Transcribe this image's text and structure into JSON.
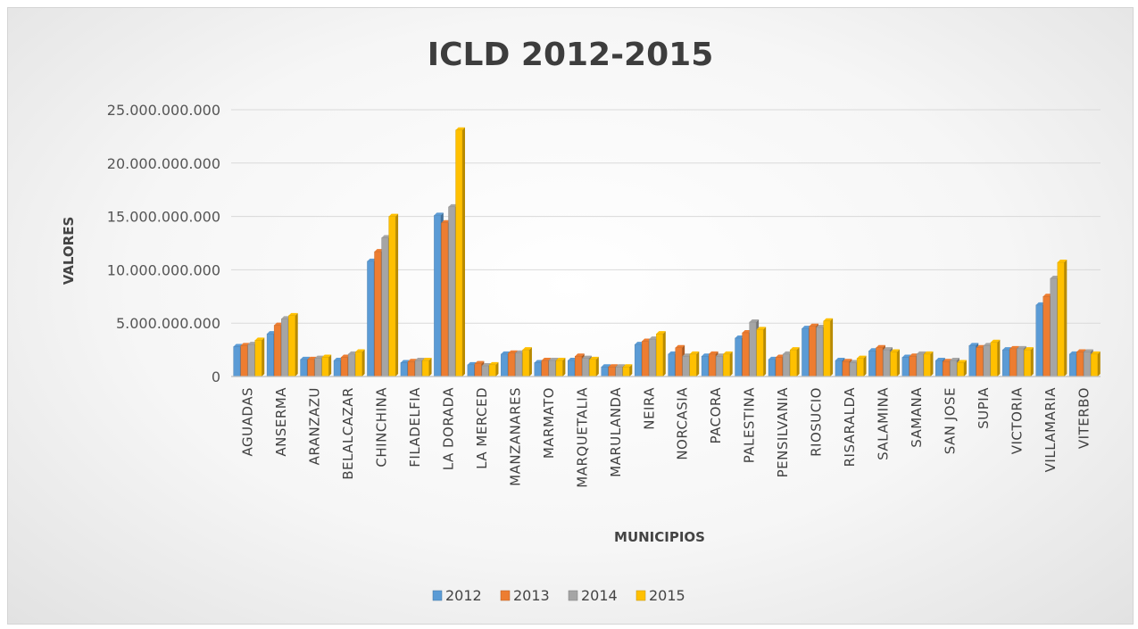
{
  "chart_data": {
    "type": "bar",
    "title": "ICLD 2012-2015",
    "xlabel": "MUNICIPIOS",
    "ylabel": "VALORES",
    "ylim": [
      0,
      25000000000
    ],
    "yticks": [
      0,
      5000000000,
      10000000000,
      15000000000,
      20000000000,
      25000000000
    ],
    "ytick_labels": [
      "0",
      "5.000.000.000",
      "10.000.000.000",
      "15.000.000.000",
      "20.000.000.000",
      "25.000.000.000"
    ],
    "grid": true,
    "legend_position": "bottom",
    "categories": [
      "AGUADAS",
      "ANSERMA",
      "ARANZAZU",
      "BELALCAZAR",
      "CHINCHINA",
      "FILADELFIA",
      "LA DORADA",
      "LA MERCED",
      "MANZANARES",
      "MARMATO",
      "MARQUETALIA",
      "MARULANDA",
      "NEIRA",
      "NORCASIA",
      "PACORA",
      "PALESTINA",
      "PENSILVANIA",
      "RIOSUCIO",
      "RISARALDA",
      "SALAMINA",
      "SAMANA",
      "SAN JOSE",
      "SUPIA",
      "VICTORIA",
      "VILLAMARIA",
      "VITERBO"
    ],
    "series": [
      {
        "name": "2012",
        "color": "#5b9bd5",
        "values": [
          2800000000,
          4000000000,
          1600000000,
          1500000000,
          10800000000,
          1300000000,
          15100000000,
          1100000000,
          2100000000,
          1300000000,
          1500000000,
          900000000,
          3000000000,
          2100000000,
          1900000000,
          3600000000,
          1600000000,
          4500000000,
          1500000000,
          2400000000,
          1800000000,
          1500000000,
          2900000000,
          2500000000,
          6700000000,
          2100000000
        ]
      },
      {
        "name": "2013",
        "color": "#ed7d31",
        "values": [
          2900000000,
          4800000000,
          1600000000,
          1800000000,
          11700000000,
          1400000000,
          14400000000,
          1200000000,
          2200000000,
          1500000000,
          1900000000,
          900000000,
          3300000000,
          2700000000,
          2100000000,
          4100000000,
          1800000000,
          4700000000,
          1400000000,
          2700000000,
          1900000000,
          1400000000,
          2700000000,
          2600000000,
          7500000000,
          2300000000
        ]
      },
      {
        "name": "2014",
        "color": "#a5a5a5",
        "values": [
          3000000000,
          5400000000,
          1700000000,
          2100000000,
          13000000000,
          1500000000,
          15900000000,
          1000000000,
          2200000000,
          1500000000,
          1700000000,
          900000000,
          3500000000,
          1900000000,
          1900000000,
          5100000000,
          2100000000,
          4600000000,
          1300000000,
          2500000000,
          2100000000,
          1500000000,
          2900000000,
          2600000000,
          9200000000,
          2300000000
        ]
      },
      {
        "name": "2015",
        "color": "#ffc000",
        "values": [
          3400000000,
          5700000000,
          1800000000,
          2300000000,
          15000000000,
          1500000000,
          23100000000,
          1100000000,
          2500000000,
          1500000000,
          1600000000,
          900000000,
          4000000000,
          2100000000,
          2100000000,
          4400000000,
          2500000000,
          5200000000,
          1700000000,
          2300000000,
          2100000000,
          1300000000,
          3200000000,
          2500000000,
          10700000000,
          2100000000
        ]
      }
    ]
  }
}
